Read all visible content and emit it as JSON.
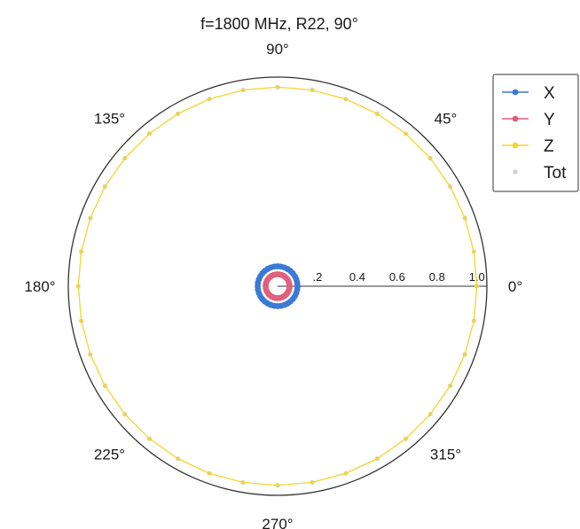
{
  "chart_data": {
    "type": "polar",
    "title": "f=1800 MHz, R22, 90°",
    "angle_ticks": [
      "90°",
      "135°",
      "45°",
      "180°",
      "0°",
      "225°",
      "315°",
      "270°"
    ],
    "angle_tick_values_deg": [
      90,
      135,
      45,
      180,
      0,
      225,
      315,
      270
    ],
    "radial_ticks": [
      ".2",
      "0.4",
      "0.6",
      "0.8",
      "1.0"
    ],
    "radial_tick_values": [
      0.2,
      0.4,
      0.6,
      0.8,
      1.0
    ],
    "rlim": [
      0,
      1.05
    ],
    "legend_position": "top-right",
    "series": [
      {
        "name": "X",
        "color": "#3a7ad6",
        "marker": "dot",
        "r_values": [
          0.1,
          0.1,
          0.1,
          0.1,
          0.1,
          0.1,
          0.1,
          0.1,
          0.1,
          0.1,
          0.1,
          0.1,
          0.1,
          0.1,
          0.1,
          0.1,
          0.1,
          0.1,
          0.1,
          0.1,
          0.1,
          0.1,
          0.1,
          0.1,
          0.1,
          0.1,
          0.1,
          0.1,
          0.1,
          0.1,
          0.1,
          0.1,
          0.1,
          0.1,
          0.1,
          0.1,
          0.1
        ]
      },
      {
        "name": "Y",
        "color": "#e0607e",
        "marker": "dot",
        "r_values": [
          0.06,
          0.06,
          0.06,
          0.06,
          0.06,
          0.06,
          0.06,
          0.06,
          0.06,
          0.06,
          0.06,
          0.06,
          0.06,
          0.06,
          0.06,
          0.06,
          0.06,
          0.06,
          0.06,
          0.06,
          0.06,
          0.06,
          0.06,
          0.06,
          0.06,
          0.06,
          0.06,
          0.06,
          0.06,
          0.06,
          0.06,
          0.06,
          0.06,
          0.06,
          0.06,
          0.06,
          0.06
        ]
      },
      {
        "name": "Z",
        "color": "#f2d62e",
        "marker": "dot",
        "r_values": [
          1.0,
          1.0,
          1.0,
          1.0,
          1.0,
          1.0,
          1.0,
          1.0,
          1.0,
          1.0,
          1.0,
          1.0,
          1.0,
          1.0,
          1.0,
          1.0,
          1.0,
          1.0,
          1.0,
          1.0,
          1.0,
          1.0,
          1.0,
          1.0,
          1.0,
          1.0,
          1.0,
          1.0,
          1.0,
          1.0,
          1.0,
          1.0,
          1.0,
          1.0,
          1.0,
          1.0,
          1.0
        ]
      },
      {
        "name": "Tot",
        "color": "#d0d0d0",
        "marker": "dot",
        "r_values": [
          1.0,
          1.0,
          1.0,
          1.0,
          1.0,
          1.0,
          1.0,
          1.0,
          1.0,
          1.0,
          1.0,
          1.0,
          1.0,
          1.0,
          1.0,
          1.0,
          1.0,
          1.0,
          1.0,
          1.0,
          1.0,
          1.0,
          1.0,
          1.0,
          1.0,
          1.0,
          1.0,
          1.0,
          1.0,
          1.0,
          1.0,
          1.0,
          1.0,
          1.0,
          1.0,
          1.0,
          1.0
        ]
      }
    ],
    "theta_deg": [
      0,
      10,
      20,
      30,
      40,
      50,
      60,
      70,
      80,
      90,
      100,
      110,
      120,
      130,
      140,
      150,
      160,
      170,
      180,
      190,
      200,
      210,
      220,
      230,
      240,
      250,
      260,
      270,
      280,
      290,
      300,
      310,
      320,
      330,
      340,
      350,
      360
    ]
  }
}
